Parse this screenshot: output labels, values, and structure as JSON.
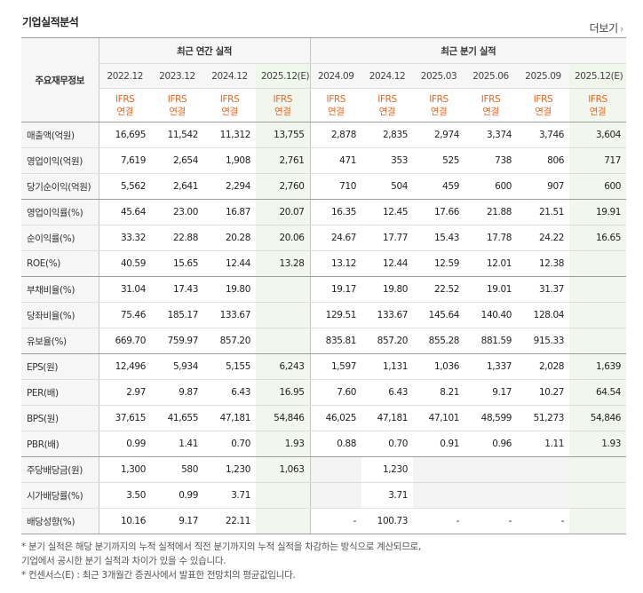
{
  "header": {
    "title": "기업실적분석",
    "more_label": "더보기"
  },
  "table": {
    "row_header_label": "주요재무정보",
    "groups": [
      {
        "label": "최근 연간 실적"
      },
      {
        "label": "최근 분기 실적"
      }
    ],
    "periods": [
      "2022.12",
      "2023.12",
      "2024.12",
      "2025.12(E)",
      "2024.09",
      "2024.12",
      "2025.03",
      "2025.06",
      "2025.09",
      "2025.12(E)"
    ],
    "ifrs": {
      "line1": "IFRS",
      "line2": "연결"
    },
    "rows": [
      {
        "label": "매출액(억원)",
        "values": [
          "16,695",
          "11,542",
          "11,312",
          "13,755",
          "2,878",
          "2,835",
          "2,974",
          "3,374",
          "3,746",
          "3,604"
        ]
      },
      {
        "label": "영업이익(억원)",
        "values": [
          "7,619",
          "2,654",
          "1,908",
          "2,761",
          "471",
          "353",
          "525",
          "738",
          "806",
          "717"
        ]
      },
      {
        "label": "당기순이익(억원)",
        "values": [
          "5,562",
          "2,641",
          "2,294",
          "2,760",
          "710",
          "504",
          "459",
          "600",
          "907",
          "600"
        ]
      },
      {
        "label": "영업이익률(%)",
        "values": [
          "45.64",
          "23.00",
          "16.87",
          "20.07",
          "16.35",
          "12.45",
          "17.66",
          "21.88",
          "21.51",
          "19.91"
        ]
      },
      {
        "label": "순이익률(%)",
        "values": [
          "33.32",
          "22.88",
          "20.28",
          "20.06",
          "24.67",
          "17.77",
          "15.43",
          "17.78",
          "24.22",
          "16.65"
        ]
      },
      {
        "label": "ROE(%)",
        "values": [
          "40.59",
          "15.65",
          "12.44",
          "13.28",
          "13.12",
          "12.44",
          "12.59",
          "12.01",
          "12.38",
          ""
        ]
      },
      {
        "label": "부채비율(%)",
        "values": [
          "31.04",
          "17.43",
          "19.80",
          "",
          "19.17",
          "19.80",
          "22.52",
          "19.01",
          "31.37",
          ""
        ]
      },
      {
        "label": "당좌비율(%)",
        "values": [
          "75.46",
          "185.17",
          "133.67",
          "",
          "129.51",
          "133.67",
          "145.64",
          "140.40",
          "128.04",
          ""
        ]
      },
      {
        "label": "유보율(%)",
        "values": [
          "669.70",
          "759.97",
          "857.20",
          "",
          "835.81",
          "857.20",
          "855.28",
          "881.59",
          "915.33",
          ""
        ]
      },
      {
        "label": "EPS(원)",
        "values": [
          "12,496",
          "5,934",
          "5,155",
          "6,243",
          "1,597",
          "1,131",
          "1,036",
          "1,337",
          "2,028",
          "1,639"
        ]
      },
      {
        "label": "PER(배)",
        "values": [
          "2.97",
          "9.87",
          "6.43",
          "16.95",
          "7.60",
          "6.43",
          "8.21",
          "9.17",
          "10.27",
          "64.54"
        ]
      },
      {
        "label": "BPS(원)",
        "values": [
          "37,615",
          "41,655",
          "47,181",
          "54,846",
          "46,025",
          "47,181",
          "47,101",
          "48,599",
          "51,273",
          "54,846"
        ]
      },
      {
        "label": "PBR(배)",
        "values": [
          "0.99",
          "1.41",
          "0.70",
          "1.93",
          "0.88",
          "0.70",
          "0.91",
          "0.96",
          "1.11",
          "1.93"
        ]
      },
      {
        "label": "주당배당금(원)",
        "values": [
          "1,300",
          "580",
          "1,230",
          "1,063",
          "",
          "1,230",
          "",
          "",
          "",
          ""
        ]
      },
      {
        "label": "시가배당률(%)",
        "values": [
          "3.50",
          "0.99",
          "3.71",
          "",
          "",
          "3.71",
          "",
          "",
          "",
          ""
        ]
      },
      {
        "label": "배당성향(%)",
        "values": [
          "10.16",
          "9.17",
          "22.11",
          "",
          "-",
          "100.73",
          "-",
          "-",
          "-",
          ""
        ]
      }
    ]
  },
  "notes": {
    "line1": "* 분기 실적은 해당 분기까지의 누적 실적에서 직전 분기까지의 누적 실적을 차감하는 방식으로 계산되므로,",
    "line2": "  기업에서 공시한 분기 실적과 차이가 있을 수 있습니다.",
    "line3": "* 컨센서스(E) : 최근 3개월간 증권사에서 발표한 전망치의 평균값입니다."
  },
  "colors": {
    "ifrs_text": "#e9661f",
    "estimate_bg": "#f2f7ee",
    "header_bg": "#f6f6f6"
  }
}
